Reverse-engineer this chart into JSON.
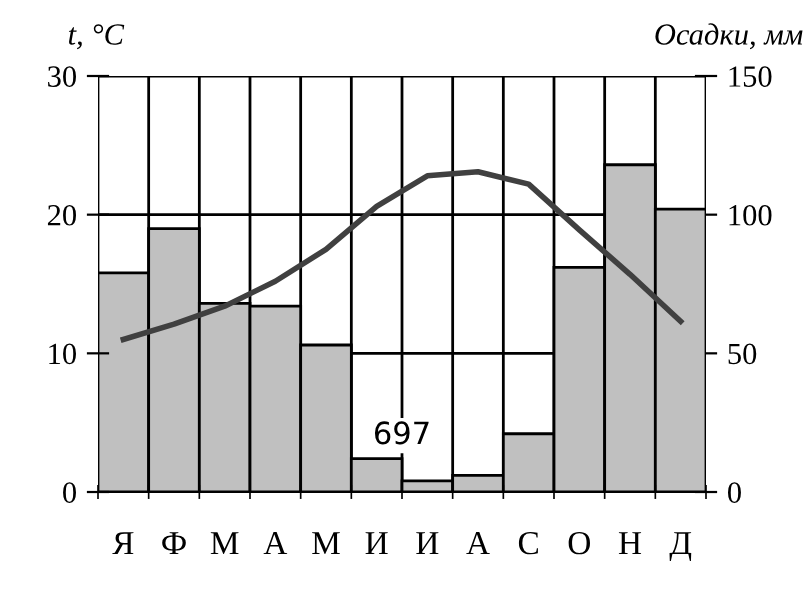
{
  "chart_data": {
    "type": "bar",
    "ylabel": "t, °C",
    "y2label": "Осадки, мм",
    "categories": [
      "Я",
      "Ф",
      "М",
      "А",
      "М",
      "И",
      "И",
      "А",
      "С",
      "О",
      "Н",
      "Д"
    ],
    "series": [
      {
        "axis": "y2",
        "color": "#c0c0c0",
        "values": [
          79,
          95,
          68,
          67,
          53,
          12,
          4,
          6,
          21,
          81,
          118,
          102
        ]
      },
      {
        "type": "line",
        "axis": "y",
        "color": "#404040",
        "values": [
          11.0,
          12.1,
          13.4,
          15.2,
          17.5,
          20.6,
          22.8,
          23.1,
          22.2,
          18.9,
          15.7,
          12.3
        ]
      }
    ],
    "ylim": [
      0,
      30
    ],
    "yticks": [
      0,
      10,
      20,
      30
    ],
    "y2lim": [
      0,
      150
    ],
    "y2ticks": [
      0,
      50,
      100,
      150
    ],
    "grid": true,
    "annotations": [
      {
        "text": "697",
        "x": "И",
        "y": 3
      }
    ]
  }
}
